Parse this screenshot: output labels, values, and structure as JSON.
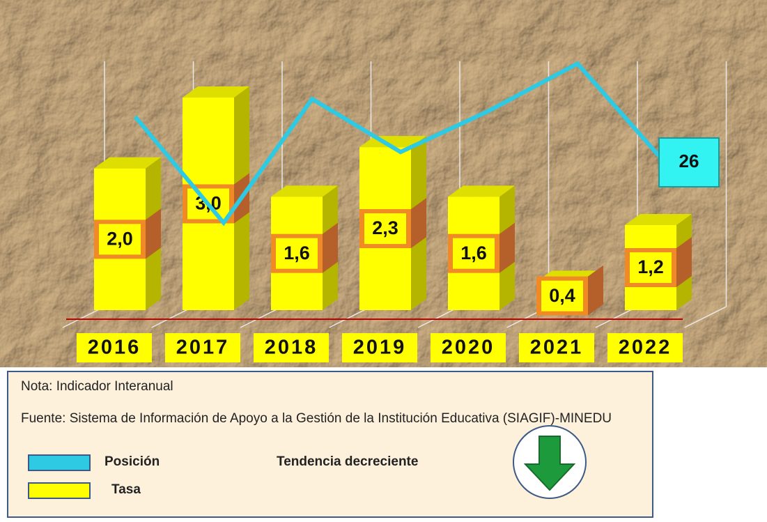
{
  "chart_data": {
    "type": "bar",
    "categories": [
      "2016",
      "2017",
      "2018",
      "2019",
      "2020",
      "2021",
      "2022"
    ],
    "series": [
      {
        "name": "Posición",
        "type": "line",
        "color": "#2ec9e2",
        "values": [
          34,
          16,
          37,
          28,
          35,
          43,
          26
        ]
      },
      {
        "name": "Tasa",
        "type": "bar",
        "color": "#ffff00",
        "values": [
          2.0,
          3.0,
          1.6,
          2.3,
          1.6,
          0.4,
          1.2
        ],
        "value_labels": [
          "2,0",
          "3,0",
          "1,6",
          "2,3",
          "1,6",
          "0,4",
          "1,2"
        ]
      }
    ],
    "note": "Nota: Indicador Interanual",
    "source": "Fuente: Sistema de Información de Apoyo a la Gestión de la Institución Educativa (SIAGIF)-MINEDU",
    "trend": "Tendencia decreciente"
  }
}
